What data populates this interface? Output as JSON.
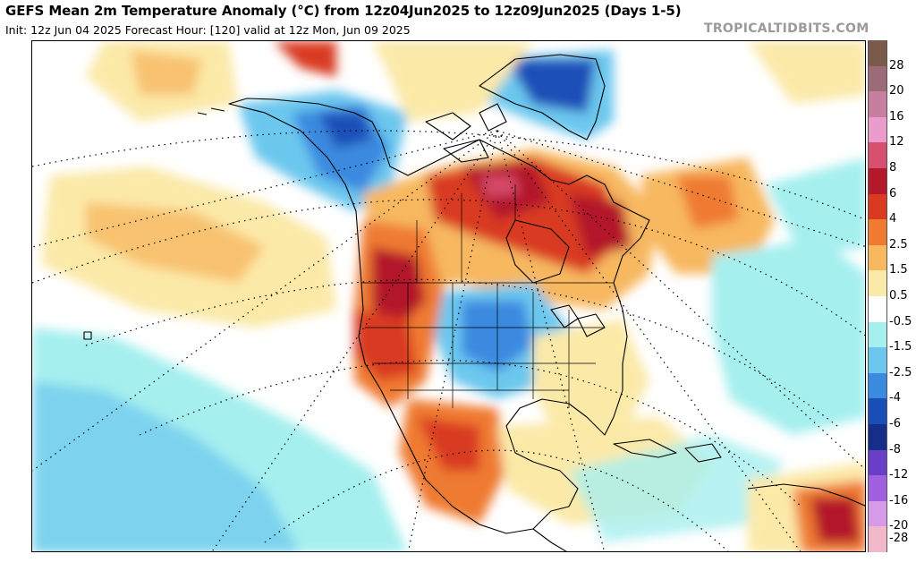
{
  "header": {
    "title": "GEFS Mean 2m Temperature Anomaly (°C) from 12z04Jun2025 to 12z09Jun2025 (Days 1-5)",
    "subtitle": "Init: 12z Jun 04 2025   Forecast Hour: [120]   valid at 12z Mon, Jun 09 2025",
    "credit": "TROPICALTIDBITS.COM"
  },
  "colorbar": {
    "levels": [
      {
        "label": "28",
        "color": "#7a5a4a"
      },
      {
        "label": "20",
        "color": "#9c6b78"
      },
      {
        "label": "16",
        "color": "#c77f9f"
      },
      {
        "label": "12",
        "color": "#ec9ccc"
      },
      {
        "label": "8",
        "color": "#d85070"
      },
      {
        "label": "6",
        "color": "#b3192a"
      },
      {
        "label": "4",
        "color": "#d93a20"
      },
      {
        "label": "2.5",
        "color": "#ef7a30"
      },
      {
        "label": "1.5",
        "color": "#f7b860"
      },
      {
        "label": "0.5",
        "color": "#fbe9a8"
      },
      {
        "label": "-0.5",
        "color": "#ffffff"
      },
      {
        "label": "-1.5",
        "color": "#a6efef"
      },
      {
        "label": "-2.5",
        "color": "#6cc7ee"
      },
      {
        "label": "-4",
        "color": "#3a8ae0"
      },
      {
        "label": "-6",
        "color": "#1a4fb8"
      },
      {
        "label": "-8",
        "color": "#172d8a"
      },
      {
        "label": "-12",
        "color": "#6a3fc8"
      },
      {
        "label": "-16",
        "color": "#a060e0"
      },
      {
        "label": "-20",
        "color": "#d79ae8"
      },
      {
        "label": "-28",
        "color": "#f0b8c8"
      }
    ]
  }
}
